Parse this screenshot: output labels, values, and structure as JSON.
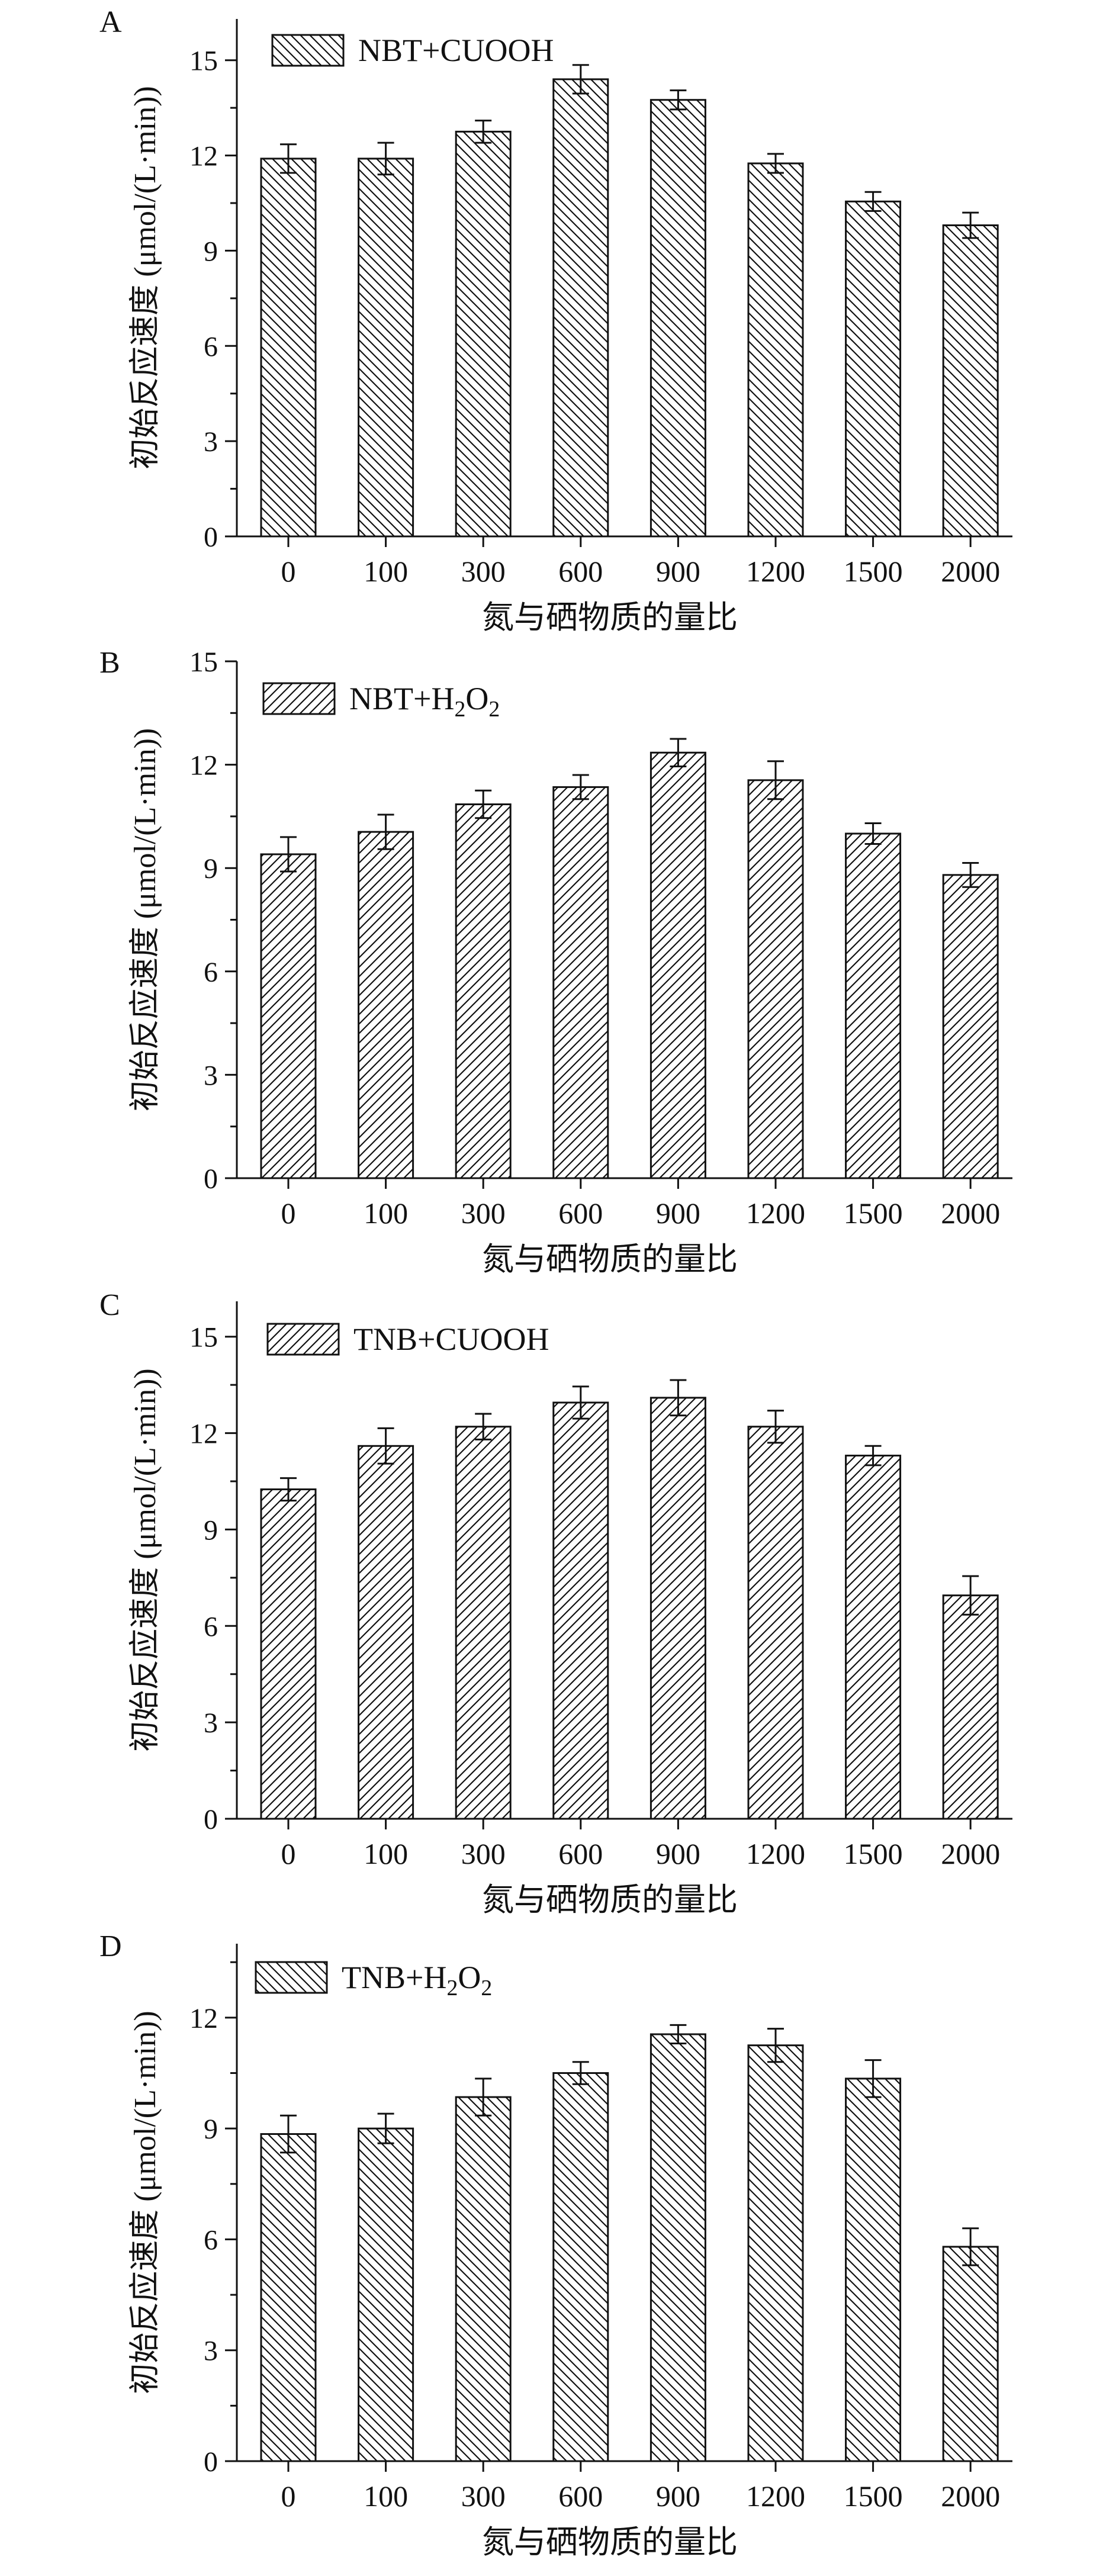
{
  "chart_data": [
    {
      "panel_letter": "A",
      "type": "bar",
      "legend": {
        "main": "NBT+CUOOH",
        "sub": []
      },
      "xlabel": "氮与硒物质的量比",
      "ylabel": "初始反应速度 (μmol/(L·min))",
      "categories": [
        "0",
        "100",
        "300",
        "600",
        "900",
        "1200",
        "1500",
        "2000"
      ],
      "values": [
        11.9,
        11.9,
        12.75,
        14.4,
        13.75,
        11.75,
        10.55,
        9.8
      ],
      "errors": [
        0.45,
        0.5,
        0.35,
        0.45,
        0.3,
        0.3,
        0.3,
        0.4
      ],
      "ylim": [
        0,
        16.3
      ],
      "yticks": [
        0,
        3,
        6,
        9,
        12,
        15
      ],
      "hatch": "backslash"
    },
    {
      "panel_letter": "B",
      "type": "bar",
      "legend": {
        "main": "NBT+H",
        "sub": [
          "2",
          "O",
          "2"
        ]
      },
      "xlabel": "氮与硒物质的量比",
      "ylabel": "初始反应速度 (μmol/(L·min))",
      "categories": [
        "0",
        "100",
        "300",
        "600",
        "900",
        "1200",
        "1500",
        "2000"
      ],
      "values": [
        9.4,
        10.05,
        10.85,
        11.35,
        12.35,
        11.55,
        10.0,
        8.8
      ],
      "errors": [
        0.5,
        0.5,
        0.4,
        0.35,
        0.4,
        0.55,
        0.3,
        0.35
      ],
      "ylim": [
        0,
        15
      ],
      "yticks": [
        0,
        3,
        6,
        9,
        12,
        15
      ],
      "hatch": "slash"
    },
    {
      "panel_letter": "C",
      "type": "bar",
      "legend": {
        "main": "TNB+CUOOH",
        "sub": []
      },
      "xlabel": "氮与硒物质的量比",
      "ylabel": "初始反应速度 (μmol/(L·min))",
      "categories": [
        "0",
        "100",
        "300",
        "600",
        "900",
        "1200",
        "1500",
        "2000"
      ],
      "values": [
        10.25,
        11.6,
        12.2,
        12.95,
        13.1,
        12.2,
        11.3,
        6.95
      ],
      "errors": [
        0.35,
        0.55,
        0.4,
        0.5,
        0.55,
        0.5,
        0.3,
        0.6
      ],
      "ylim": [
        0,
        16.1
      ],
      "yticks": [
        0,
        3,
        6,
        9,
        12,
        15
      ],
      "hatch": "slash"
    },
    {
      "panel_letter": "D",
      "type": "bar",
      "legend": {
        "main": "TNB+H",
        "sub": [
          "2",
          "O",
          "2"
        ]
      },
      "xlabel": "氮与硒物质的量比",
      "ylabel": "初始反应速度 (μmol/(L·min))",
      "categories": [
        "0",
        "100",
        "300",
        "600",
        "900",
        "1200",
        "1500",
        "2000"
      ],
      "values": [
        8.85,
        9.0,
        9.85,
        10.5,
        11.55,
        11.25,
        10.35,
        5.8
      ],
      "errors": [
        0.5,
        0.4,
        0.5,
        0.3,
        0.25,
        0.45,
        0.5,
        0.5
      ],
      "ylim": [
        0,
        14
      ],
      "yticks": [
        0,
        3,
        6,
        9,
        12
      ],
      "hatch": "backslash"
    }
  ]
}
